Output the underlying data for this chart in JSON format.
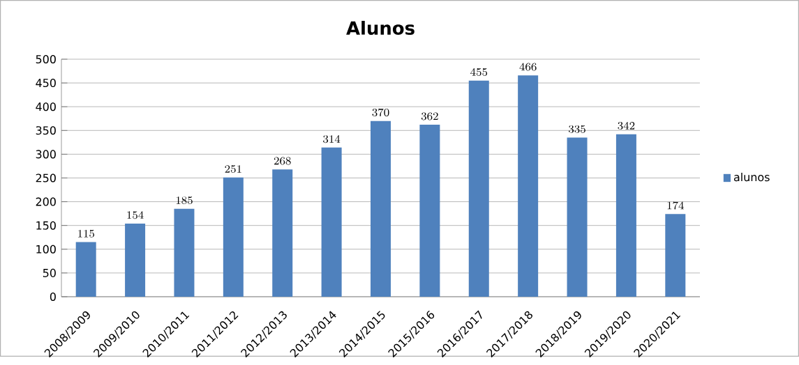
{
  "chart_data": {
    "type": "bar",
    "title": "Alunos",
    "categories": [
      "2008/2009",
      "2009/2010",
      "2010/2011",
      "2011/2012",
      "2012/2013",
      "2013/2014",
      "2014/2015",
      "2015/2016",
      "2016/2017",
      "2017/2018",
      "2018/2019",
      "2019/2020",
      "2020/2021"
    ],
    "series": [
      {
        "name": "alunos",
        "color": "#4f81bd",
        "values": [
          115,
          154,
          185,
          251,
          268,
          314,
          370,
          362,
          455,
          466,
          335,
          342,
          174
        ]
      }
    ],
    "ylim": [
      0,
      500
    ],
    "yticks": [
      0,
      50,
      100,
      150,
      200,
      250,
      300,
      350,
      400,
      450,
      500
    ],
    "grid": "y",
    "legend": "right",
    "data_labels": true
  }
}
